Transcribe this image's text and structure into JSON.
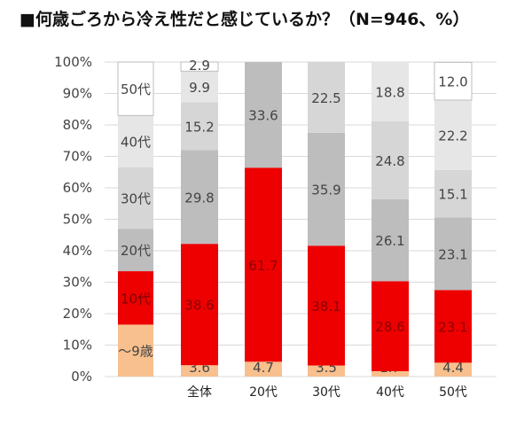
{
  "chart_data": {
    "type": "bar",
    "stacked": true,
    "title": "■何歳ごろから冷え性だと感じているか？（N=946、%）",
    "ylim": [
      0,
      100
    ],
    "yticks": [
      "0%",
      "10%",
      "20%",
      "30%",
      "40%",
      "50%",
      "60%",
      "70%",
      "80%",
      "90%",
      "100%"
    ],
    "legend_column": {
      "labels": [
        "～9歳",
        "10代",
        "20代",
        "30代",
        "40代",
        "50代"
      ]
    },
    "categories": [
      "全体",
      "20代",
      "30代",
      "40代",
      "50代"
    ],
    "series": [
      {
        "name": "～9歳",
        "color": "#f8c08e",
        "values": [
          3.6,
          4.7,
          3.5,
          1.7,
          4.4
        ]
      },
      {
        "name": "10代",
        "color": "#ee0000",
        "values": [
          38.6,
          61.7,
          38.1,
          28.6,
          23.1
        ]
      },
      {
        "name": "20代",
        "color": "#bdbdbd",
        "values": [
          29.8,
          33.6,
          35.9,
          26.1,
          23.1
        ]
      },
      {
        "name": "30代",
        "color": "#d6d6d6",
        "values": [
          15.2,
          null,
          22.5,
          24.8,
          15.1
        ]
      },
      {
        "name": "40代",
        "color": "#e6e6e6",
        "values": [
          9.9,
          null,
          null,
          18.8,
          22.2
        ]
      },
      {
        "name": "50代",
        "color": "#f3f3f3",
        "values": [
          2.9,
          null,
          null,
          null,
          12.0
        ]
      }
    ],
    "value_labels": [
      [
        "3.6",
        "4.7",
        "3.5",
        "1.7",
        "4.4"
      ],
      [
        "38.6",
        "61.7",
        "38.1",
        "28.6",
        "23.1"
      ],
      [
        "29.8",
        "33.6",
        "35.9",
        "26.1",
        "23.1"
      ],
      [
        "15.2",
        "",
        "22.5",
        "24.8",
        "15.1"
      ],
      [
        "9.9",
        "",
        "",
        "18.8",
        "22.2"
      ],
      [
        "2.9",
        "",
        "",
        "",
        "12.0"
      ]
    ],
    "legend_column_fractions": [
      16.5,
      17.0,
      13.5,
      19.5,
      16.5,
      17.0
    ]
  }
}
